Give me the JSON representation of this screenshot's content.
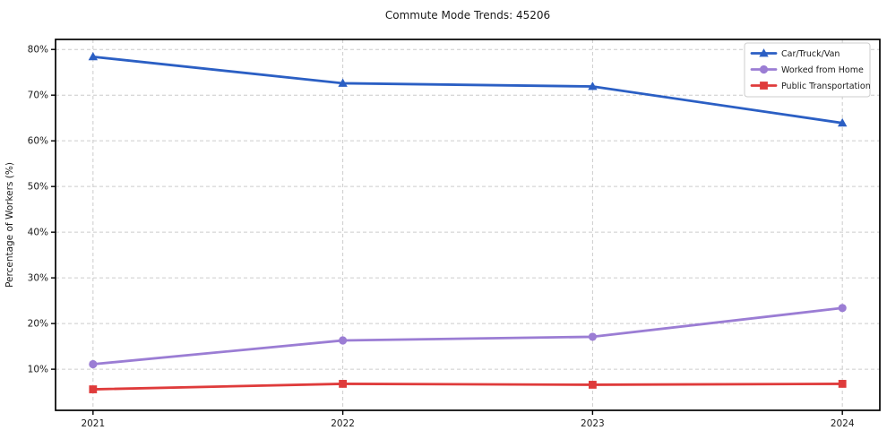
{
  "chart_data": {
    "type": "line",
    "title": "Commute Mode Trends: 45206",
    "xlabel": "",
    "ylabel": "Percentage of Workers (%)",
    "x": [
      2021,
      2022,
      2023,
      2024
    ],
    "xticklabels": [
      "2021",
      "2022",
      "2023",
      "2024"
    ],
    "yticks": [
      10,
      20,
      30,
      40,
      50,
      60,
      70,
      80
    ],
    "ytick_format": "{v}%",
    "xlim": [
      2020.85,
      2024.15
    ],
    "ylim": [
      1.0,
      82.2
    ],
    "grid": true,
    "legend_position": "upper right",
    "series": [
      {
        "name": "Car/Truck/Van",
        "color": "#2b5fc4",
        "marker": "triangle",
        "values": [
          78.4,
          72.6,
          71.9,
          63.9
        ]
      },
      {
        "name": "Worked from Home",
        "color": "#9b7dd4",
        "marker": "circle",
        "values": [
          11.1,
          16.3,
          17.1,
          23.4
        ]
      },
      {
        "name": "Public Transportation",
        "color": "#df3b3b",
        "marker": "square",
        "values": [
          5.6,
          6.8,
          6.6,
          6.8
        ]
      }
    ]
  }
}
